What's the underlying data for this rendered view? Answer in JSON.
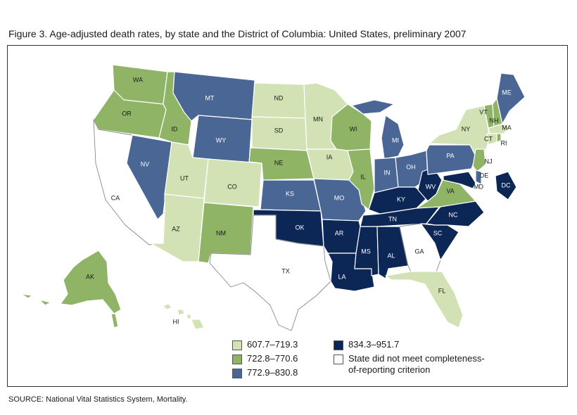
{
  "title": "Figure 3. Age-adjusted death rates, by state and the District of Columbia: United States, preliminary 2007",
  "source": "SOURCE: National Vital Statistics System, Mortality.",
  "colors": {
    "c1": "#d2e2b4",
    "c2": "#90b466",
    "c3": "#4a6694",
    "c4": "#0c2656",
    "none": "#ffffff"
  },
  "legend": {
    "items": [
      {
        "label": "607.7–719.3",
        "color": "#d2e2b4"
      },
      {
        "label": "722.8–770.6",
        "color": "#90b466"
      },
      {
        "label": "772.9–830.8",
        "color": "#4a6694"
      },
      {
        "label": "834.3–951.7",
        "color": "#0c2656"
      },
      {
        "label": "State did not meet completeness-",
        "label2": "of-reporting criterion",
        "color": "#ffffff"
      }
    ]
  },
  "states": {
    "WA": "WA",
    "OR": "OR",
    "CA": "CA",
    "NV": "NV",
    "ID": "ID",
    "MT": "MT",
    "WY": "WY",
    "UT": "UT",
    "AZ": "AZ",
    "CO": "CO",
    "NM": "NM",
    "ND": "ND",
    "SD": "SD",
    "NE": "NE",
    "KS": "KS",
    "OK": "OK",
    "TX": "TX",
    "MN": "MN",
    "IA": "IA",
    "MO": "MO",
    "AR": "AR",
    "LA": "LA",
    "WI": "WI",
    "IL": "IL",
    "MS": "MS",
    "MI": "MI",
    "IN": "IN",
    "KY": "KY",
    "TN": "TN",
    "AL": "AL",
    "GA": "GA",
    "FL": "FL",
    "OH": "OH",
    "WV": "WV",
    "VA": "VA",
    "NC": "NC",
    "SC": "SC",
    "PA": "PA",
    "NY": "NY",
    "VT": "VT",
    "NH": "NH",
    "ME": "ME",
    "MA": "MA",
    "RI": "RI",
    "CT": "CT",
    "NJ": "NJ",
    "DE": "DE",
    "MD": "MD",
    "DC": "DC",
    "AK": "AK",
    "HI": "HI"
  }
}
